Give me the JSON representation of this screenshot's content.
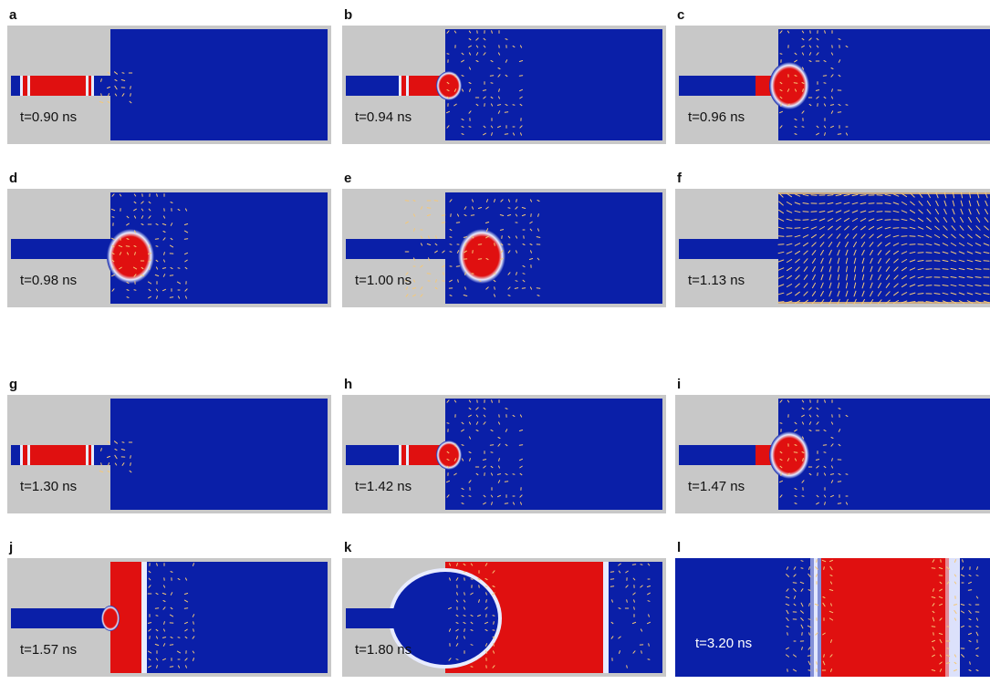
{
  "panels": [
    {
      "label": "a",
      "time": "t=0.90 ns",
      "layout": "split",
      "stage": "input-pulse"
    },
    {
      "label": "b",
      "time": "t=0.94 ns",
      "layout": "split",
      "stage": "exit"
    },
    {
      "label": "c",
      "time": "t=0.96 ns",
      "layout": "split",
      "stage": "half-bubble"
    },
    {
      "label": "d",
      "time": "t=0.98 ns",
      "layout": "split",
      "stage": "bubble-detaching"
    },
    {
      "label": "e",
      "time": "t=1.00 ns",
      "layout": "split",
      "stage": "bubble-free"
    },
    {
      "label": "f",
      "time": "t=1.13 ns",
      "layout": "split",
      "stage": "dissolved"
    },
    {
      "label": "g",
      "time": "t=1.30 ns",
      "layout": "split",
      "stage": "input-pulse"
    },
    {
      "label": "h",
      "time": "t=1.42 ns",
      "layout": "split",
      "stage": "exit"
    },
    {
      "label": "i",
      "time": "t=1.47 ns",
      "layout": "split",
      "stage": "half-bubble"
    },
    {
      "label": "j",
      "time": "t=1.57 ns",
      "layout": "split",
      "stage": "wall-expanding"
    },
    {
      "label": "k",
      "time": "t=1.80 ns",
      "layout": "split",
      "stage": "large-domain"
    },
    {
      "label": "l",
      "time": "t=3.20 ns",
      "layout": "full",
      "stage": "band"
    }
  ],
  "colors": {
    "domain_blue": "#0a1fa8",
    "reversed_red": "#e01010",
    "wall_white": "#e8ecff",
    "arrow_yellow": "#f5c877",
    "background_gray": "#c8c8c8",
    "label_dark": "#111111",
    "label_light": "#ffffff"
  }
}
